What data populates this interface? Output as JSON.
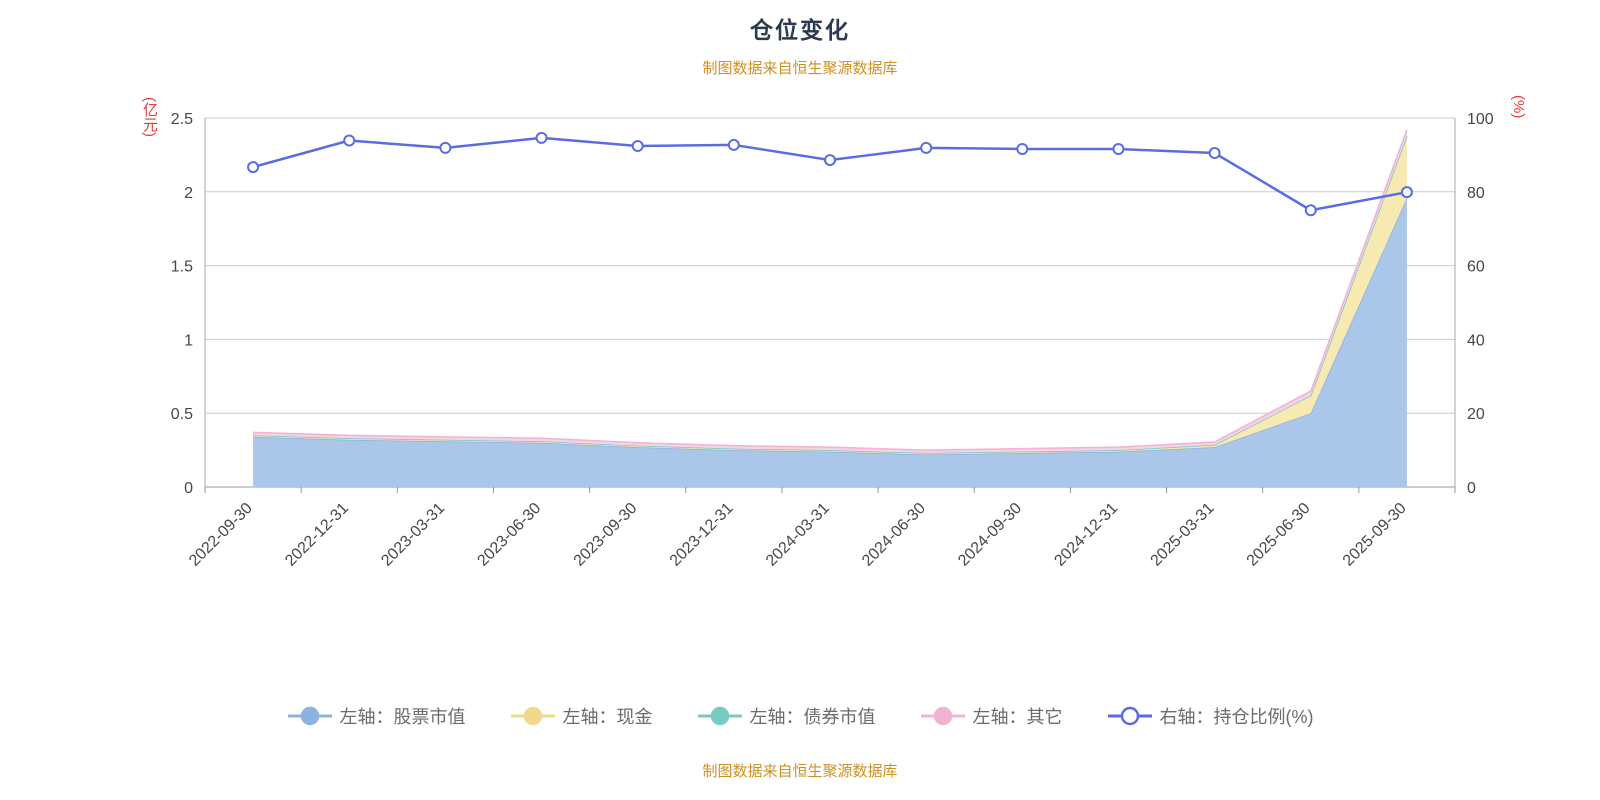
{
  "title": "仓位变化",
  "subtitle": "制图数据来自恒生聚源数据库",
  "footer": "制图数据来自恒生聚源数据库",
  "axes": {
    "left_unit": "(亿元)",
    "right_unit": "(%)",
    "left_ticks": [
      0,
      0.5,
      1,
      1.5,
      2,
      2.5
    ],
    "right_ticks": [
      0,
      20,
      40,
      60,
      80,
      100
    ]
  },
  "legend": [
    {
      "label": "左轴：股票市值",
      "color": "#8db1e1",
      "fill": "#8db1e1",
      "type": "area"
    },
    {
      "label": "左轴：现金",
      "color": "#f0d98a",
      "fill": "#f0d98a",
      "type": "area"
    },
    {
      "label": "左轴：债券市值",
      "color": "#76cbc3",
      "fill": "#76cbc3",
      "type": "area"
    },
    {
      "label": "左轴：其它",
      "color": "#efb3d4",
      "fill": "#efb3d4",
      "type": "area"
    },
    {
      "label": "右轴：持仓比例(%)",
      "color": "#5b6ce1",
      "fill": "#ffffff",
      "type": "line"
    }
  ],
  "chart_data": {
    "type": "area",
    "title": "仓位变化",
    "x": [
      "2022-09-30",
      "2022-12-31",
      "2023-03-31",
      "2023-06-30",
      "2023-09-30",
      "2023-12-31",
      "2024-03-31",
      "2024-06-30",
      "2024-09-30",
      "2024-12-31",
      "2025-03-31",
      "2025-06-30",
      "2025-09-30"
    ],
    "ylim_left": [
      0,
      2.5
    ],
    "ylim_right": [
      0,
      100
    ],
    "grid": true,
    "legend_position": "bottom",
    "series": [
      {
        "name": "左轴：股票市值",
        "axis": "left",
        "stacked": true,
        "fill": "#aac6e8",
        "stroke": "#8db1e1",
        "values": [
          0.34,
          0.32,
          0.31,
          0.3,
          0.27,
          0.25,
          0.24,
          0.22,
          0.23,
          0.24,
          0.27,
          0.5,
          1.96
        ]
      },
      {
        "name": "左轴：现金",
        "axis": "left",
        "stacked": true,
        "fill": "#f7e9b2",
        "stroke": "#ecd98e",
        "values": [
          0.01,
          0.01,
          0.01,
          0.01,
          0.01,
          0.01,
          0.01,
          0.01,
          0.01,
          0.01,
          0.015,
          0.12,
          0.42
        ]
      },
      {
        "name": "左轴：债券市值",
        "axis": "left",
        "stacked": true,
        "fill": "#a9e0db",
        "stroke": "#76cbc3",
        "values": [
          0,
          0,
          0,
          0,
          0,
          0,
          0,
          0,
          0,
          0,
          0,
          0,
          0
        ]
      },
      {
        "name": "左轴：其它",
        "axis": "left",
        "stacked": true,
        "fill": "#f6d2e7",
        "stroke": "#efb3d4",
        "values": [
          0.02,
          0.02,
          0.02,
          0.02,
          0.02,
          0.02,
          0.02,
          0.02,
          0.02,
          0.02,
          0.02,
          0.03,
          0.04
        ]
      },
      {
        "name": "右轴：持仓比例(%)",
        "axis": "right",
        "type": "line",
        "stroke": "#5b6ce1",
        "marker": "#ffffff",
        "values": [
          86.7,
          93.9,
          91.9,
          94.6,
          92.4,
          92.7,
          88.6,
          91.9,
          91.6,
          91.6,
          90.5,
          75.0,
          79.9
        ]
      }
    ]
  }
}
